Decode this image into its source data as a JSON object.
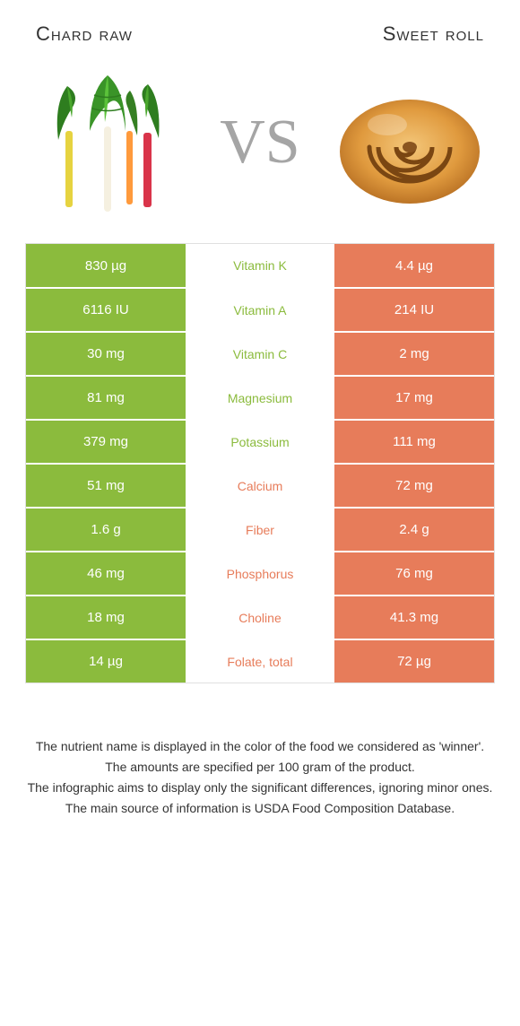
{
  "colors": {
    "green": "#8bbb3d",
    "orange": "#e77c5a",
    "vs_gray": "#a5a5a5",
    "text": "#333333",
    "border": "#e0e0e0"
  },
  "typography": {
    "title_fontsize": 22,
    "vs_fontsize": 70,
    "cell_fontsize": 15,
    "mid_fontsize": 14,
    "footnote_fontsize": 14
  },
  "header": {
    "left": "Chard raw",
    "right": "Sweet roll",
    "vs": "VS"
  },
  "rows": [
    {
      "left": "830 µg",
      "mid": "Vitamin K",
      "right": "4.4 µg",
      "winner": "left"
    },
    {
      "left": "6116 IU",
      "mid": "Vitamin A",
      "right": "214 IU",
      "winner": "left"
    },
    {
      "left": "30 mg",
      "mid": "Vitamin C",
      "right": "2 mg",
      "winner": "left"
    },
    {
      "left": "81 mg",
      "mid": "Magnesium",
      "right": "17 mg",
      "winner": "left"
    },
    {
      "left": "379 mg",
      "mid": "Potassium",
      "right": "111 mg",
      "winner": "left"
    },
    {
      "left": "51 mg",
      "mid": "Calcium",
      "right": "72 mg",
      "winner": "right"
    },
    {
      "left": "1.6 g",
      "mid": "Fiber",
      "right": "2.4 g",
      "winner": "right"
    },
    {
      "left": "46 mg",
      "mid": "Phosphorus",
      "right": "76 mg",
      "winner": "right"
    },
    {
      "left": "18 mg",
      "mid": "Choline",
      "right": "41.3 mg",
      "winner": "right"
    },
    {
      "left": "14 µg",
      "mid": "Folate, total",
      "right": "72 µg",
      "winner": "right"
    }
  ],
  "footnotes": [
    "The nutrient name is displayed in the color of the food we considered as 'winner'.",
    "The amounts are specified per 100 gram of the product.",
    "The infographic aims to display only the significant differences, ignoring minor ones.",
    "The main source of information is USDA Food Composition Database."
  ]
}
